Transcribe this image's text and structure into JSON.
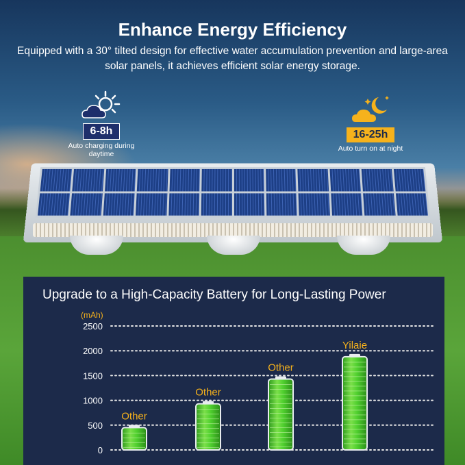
{
  "header": {
    "title": "Enhance Energy Efficiency",
    "subtitle": "Equipped with a 30° tilted design for effective water accumulation prevention and large-area solar panels, it achieves efficient solar energy storage."
  },
  "day_badge": {
    "time": "6-8h",
    "caption": "Auto charging during daytime",
    "icon": "sun-cloud-icon"
  },
  "night_badge": {
    "time": "16-25h",
    "caption": "Auto turn on at night",
    "icon": "moon-cloud-icon"
  },
  "colors": {
    "chart_bg": "#1c2a4a",
    "accent": "#f6b21c",
    "battery_green": "#3fbf2a",
    "badge_day": "#1e2f6b"
  },
  "chart_data": {
    "type": "bar",
    "title": "Upgrade to a High-Capacity Battery for Long-Lasting Power",
    "ylabel": "(mAh)",
    "ylim": [
      0,
      2500
    ],
    "yticks": [
      "2500",
      "2000",
      "1500",
      "1000",
      "500",
      "0"
    ],
    "categories": [
      "Other",
      "Other",
      "Other",
      "Yilaie"
    ],
    "values": [
      450,
      930,
      1430,
      1880
    ],
    "grid": true
  }
}
